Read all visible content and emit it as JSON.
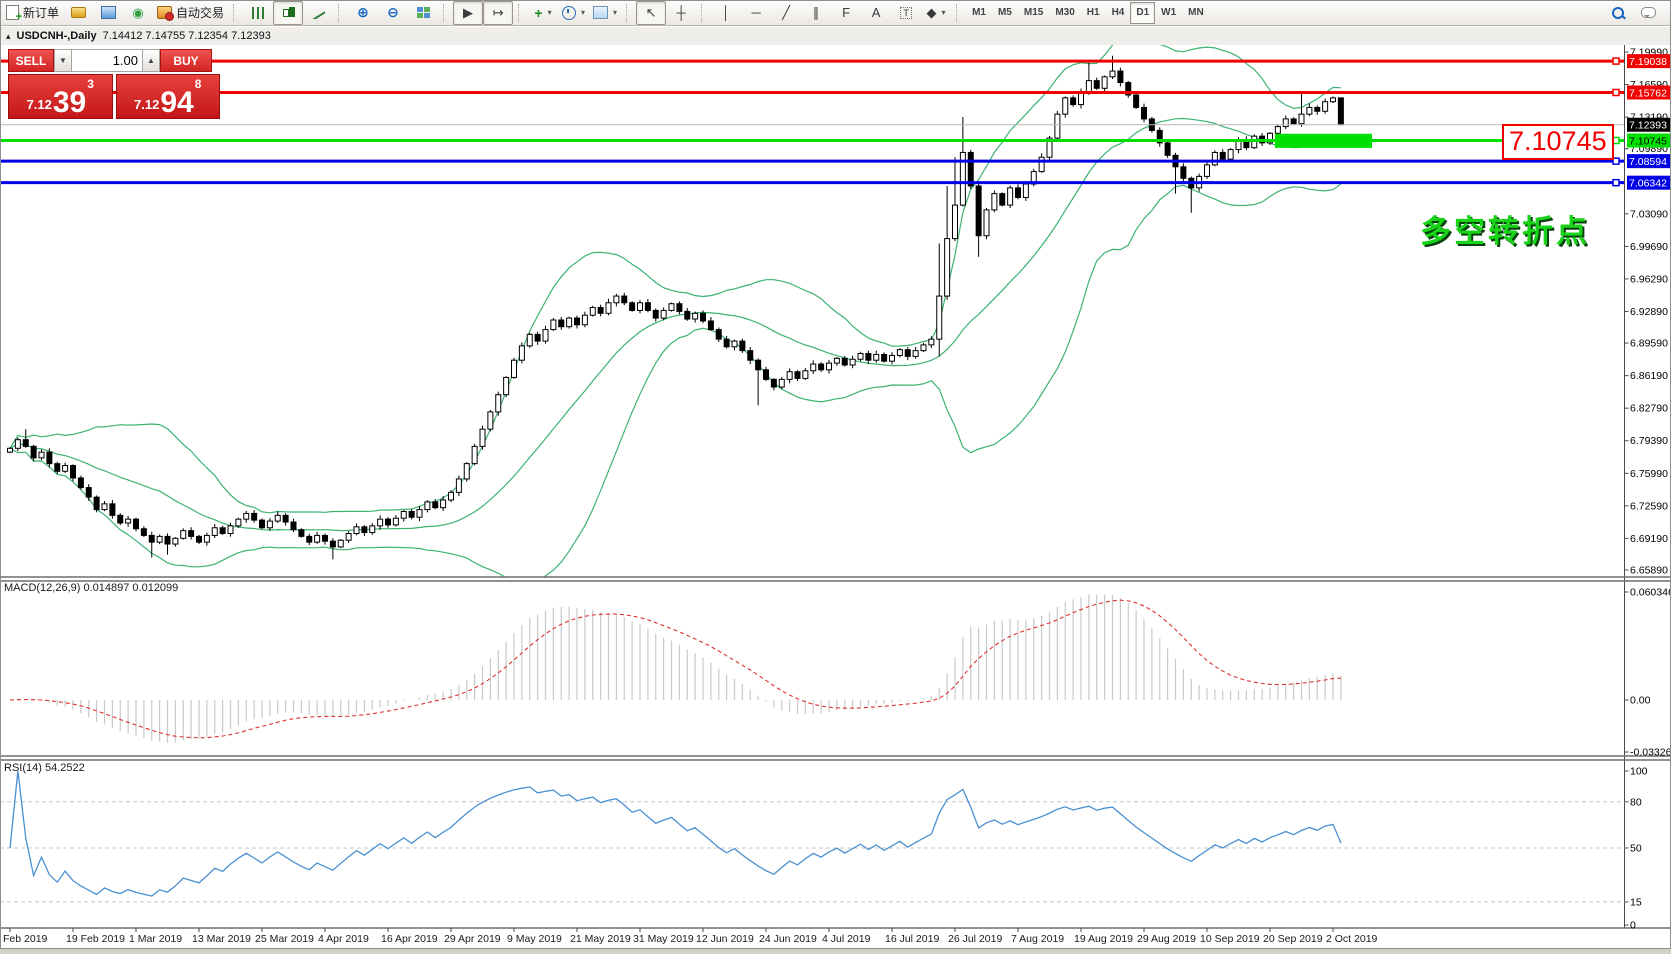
{
  "toolbar": {
    "new_order_label": "新订单",
    "autotrading_label": "自动交易",
    "text_tool_label": "A",
    "label_tool_label": "T",
    "timeframes": [
      "M1",
      "M5",
      "M15",
      "M30",
      "H1",
      "H4",
      "D1",
      "W1",
      "MN"
    ],
    "active_timeframe": "D1"
  },
  "window": {
    "title": "USDCNH-,Daily",
    "ohlc_readout": "7.14412 7.14755 7.12354 7.12393",
    "collapse_icon": "▴"
  },
  "trade_panel": {
    "sell_label": "SELL",
    "buy_label": "BUY",
    "volume": "1.00",
    "bid_prefix": "7.12",
    "bid_big": "39",
    "bid_sup": "3",
    "ask_prefix": "7.12",
    "ask_big": "94",
    "ask_sup": "8"
  },
  "annotation_text": "多空转折点",
  "callout_text": "7.10745",
  "macd_label": "MACD(12,26,9) 0.014897 0.012099",
  "rsi_label": "RSI(14) 54.2522",
  "colors": {
    "resistance": "#f00000",
    "support_blue": "#0000e8",
    "pivot_green": "#00e000",
    "current_price": "#b8b8b8",
    "bollinger": "#3cb371",
    "macd_hist": "#c9c9c9",
    "macd_signal": "#e03030",
    "rsi_line": "#4a90d2"
  },
  "chart_data": [
    {
      "type": "candlestick",
      "title": "USDCNH- Daily with Bollinger Bands (20,2)",
      "x_labels": [
        "Feb 2019",
        "19 Feb 2019",
        "1 Mar 2019",
        "13 Mar 2019",
        "25 Mar 2019",
        "4 Apr 2019",
        "16 Apr 2019",
        "29 Apr 2019",
        "9 May 2019",
        "21 May 2019",
        "31 May 2019",
        "12 Jun 2019",
        "24 Jun 2019",
        "4 Jul 2019",
        "16 Jul 2019",
        "26 Jul 2019",
        "7 Aug 2019",
        "19 Aug 2019",
        "29 Aug 2019",
        "10 Sep 2019",
        "20 Sep 2019",
        "2 Oct 2019"
      ],
      "y_ticks": [
        "7.19990",
        "7.16590",
        "7.13190",
        "7.09890",
        "7.03090",
        "6.99690",
        "6.96290",
        "6.92890",
        "6.89590",
        "6.86190",
        "6.82790",
        "6.79390",
        "6.75990",
        "6.72590",
        "6.69190",
        "6.65890"
      ],
      "ylim": [
        6.6589,
        7.1999
      ],
      "closes": [
        6.786,
        6.795,
        6.788,
        6.776,
        6.782,
        6.77,
        6.762,
        6.768,
        6.755,
        6.745,
        6.735,
        6.722,
        6.728,
        6.716,
        6.708,
        6.712,
        6.702,
        6.695,
        6.688,
        6.694,
        6.686,
        6.692,
        6.7,
        6.694,
        6.688,
        6.695,
        6.703,
        6.697,
        6.705,
        6.712,
        6.718,
        6.711,
        6.703,
        6.71,
        6.716,
        6.709,
        6.701,
        6.694,
        6.688,
        6.695,
        6.689,
        6.683,
        6.69,
        6.697,
        6.704,
        6.698,
        6.705,
        6.712,
        6.706,
        6.713,
        6.72,
        6.714,
        6.722,
        6.73,
        6.724,
        6.732,
        6.74,
        6.754,
        6.77,
        6.788,
        6.806,
        6.824,
        6.842,
        6.86,
        6.878,
        6.893,
        6.905,
        6.898,
        6.91,
        6.92,
        6.913,
        6.922,
        6.915,
        6.925,
        6.933,
        6.927,
        6.938,
        6.945,
        6.938,
        6.93,
        6.938,
        6.93,
        6.922,
        6.93,
        6.937,
        6.929,
        6.921,
        6.927,
        6.919,
        6.91,
        6.9,
        6.892,
        6.898,
        6.888,
        6.878,
        6.868,
        6.858,
        6.85,
        6.858,
        6.866,
        6.859,
        6.867,
        6.874,
        6.868,
        6.875,
        6.88,
        6.873,
        6.879,
        6.885,
        6.878,
        6.884,
        6.877,
        6.883,
        6.889,
        6.882,
        6.888,
        6.894,
        6.9,
        6.945,
        7.005,
        7.04,
        7.095,
        7.06,
        7.008,
        7.035,
        7.052,
        7.04,
        7.058,
        7.048,
        7.062,
        7.075,
        7.09,
        7.11,
        7.135,
        7.152,
        7.145,
        7.158,
        7.17,
        7.162,
        7.174,
        7.18,
        7.168,
        7.155,
        7.142,
        7.13,
        7.118,
        7.105,
        7.092,
        7.08,
        7.068,
        7.058,
        7.07,
        7.082,
        7.095,
        7.088,
        7.098,
        7.108,
        7.1,
        7.112,
        7.105,
        7.115,
        7.122,
        7.13,
        7.125,
        7.135,
        7.142,
        7.138,
        7.148,
        7.152,
        7.124
      ],
      "wick_overrides": {
        "2": [
          6.806,
          null
        ],
        "18": [
          null,
          6.672
        ],
        "20": [
          null,
          6.675
        ],
        "41": [
          null,
          6.67
        ],
        "95": [
          null,
          6.831
        ],
        "118": [
          7.0,
          6.882
        ],
        "119": [
          7.06,
          null
        ],
        "120": [
          7.09,
          null
        ],
        "121": [
          7.132,
          null
        ],
        "123": [
          null,
          6.986
        ],
        "137": [
          7.1885,
          null
        ],
        "140": [
          7.196,
          null
        ],
        "148": [
          null,
          7.052
        ],
        "150": [
          null,
          7.032
        ],
        "164": [
          7.158,
          null
        ],
        "169": [
          7.1476,
          7.1235
        ]
      },
      "indicator": "Bollinger Bands (20,2)",
      "hlines": [
        {
          "price": 7.19038,
          "color": "#f00000",
          "width": 3,
          "badge": {
            "bg": "#f00000",
            "fg": "#ffffff"
          }
        },
        {
          "price": 7.15762,
          "color": "#f00000",
          "width": 3,
          "badge": {
            "bg": "#f00000",
            "fg": "#ffffff"
          }
        },
        {
          "price": 7.12393,
          "color": "#b8b8b8",
          "width": 1,
          "badge": {
            "bg": "#000000",
            "fg": "#ffffff"
          }
        },
        {
          "price": 7.10745,
          "color": "#00e000",
          "width": 3,
          "badge": {
            "bg": "#00e000",
            "fg": "#000000"
          }
        },
        {
          "price": 7.08594,
          "color": "#0000e8",
          "width": 3,
          "badge": {
            "bg": "#0000e8",
            "fg": "#ffffff"
          }
        },
        {
          "price": 7.06342,
          "color": "#0000e8",
          "width": 3,
          "badge": {
            "bg": "#0000e8",
            "fg": "#ffffff"
          }
        }
      ],
      "rect": {
        "x_start": 1275,
        "x_end": 1372,
        "price_top": 7.1145,
        "price_bottom": 7.0997,
        "color": "#00e000"
      }
    },
    {
      "type": "bar",
      "title": "MACD(12,26,9)",
      "params": [
        12,
        26,
        9
      ],
      "current_values": [
        0.014897,
        0.012099
      ],
      "y_ticks": [
        "0.060346",
        "0.00",
        "-0.033267"
      ],
      "ylim": [
        -0.033267,
        0.060346
      ],
      "derived_from": "closes"
    },
    {
      "type": "line",
      "title": "RSI(14)",
      "params": [
        14
      ],
      "current_value": 54.2522,
      "y_ticks": [
        "100",
        "80",
        "50",
        "15",
        "0"
      ],
      "levels": [
        80,
        50,
        15
      ],
      "ylim": [
        0,
        100
      ],
      "derived_from": "closes"
    }
  ]
}
